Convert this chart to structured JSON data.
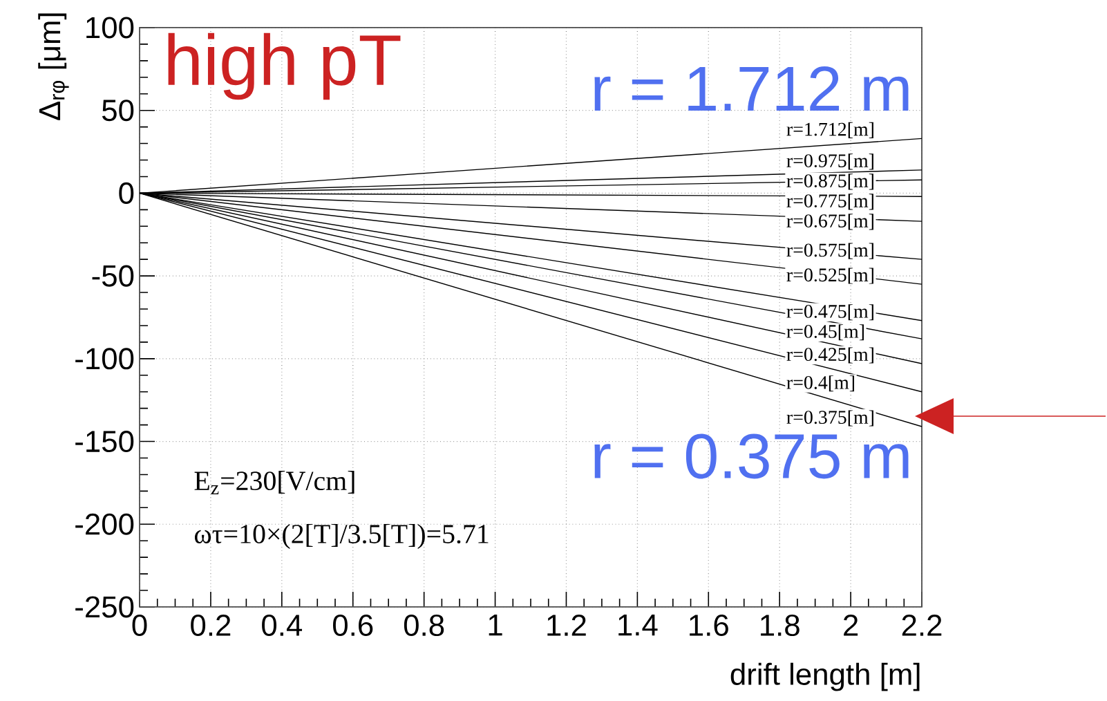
{
  "chart_data": {
    "type": "line",
    "x": [
      0,
      2.2
    ],
    "series": [
      {
        "name": "r=1.712[m]",
        "color": "#000000",
        "values": [
          0,
          33
        ]
      },
      {
        "name": "r=0.975[m]",
        "color": "#000000",
        "values": [
          0,
          14
        ]
      },
      {
        "name": "r=0.875[m]",
        "color": "#000000",
        "values": [
          0,
          8
        ]
      },
      {
        "name": "r=0.775[m]",
        "color": "#000000",
        "values": [
          0,
          -2
        ]
      },
      {
        "name": "r=0.675[m]",
        "color": "#000000",
        "values": [
          0,
          -17
        ]
      },
      {
        "name": "r=0.575[m]",
        "color": "#000000",
        "values": [
          0,
          -40
        ]
      },
      {
        "name": "r=0.525[m]",
        "color": "#000000",
        "values": [
          0,
          -55
        ]
      },
      {
        "name": "r=0.475[m]",
        "color": "#000000",
        "values": [
          0,
          -77
        ]
      },
      {
        "name": "r=0.45[m]",
        "color": "#000000",
        "values": [
          0,
          -88
        ]
      },
      {
        "name": "r=0.425[m]",
        "color": "#000000",
        "values": [
          0,
          -103
        ]
      },
      {
        "name": "r=0.4[m]",
        "color": "#000000",
        "values": [
          0,
          -120
        ]
      },
      {
        "name": "r=0.375[m]",
        "color": "#000000",
        "values": [
          0,
          -141
        ]
      }
    ],
    "xlim": [
      0,
      2.2
    ],
    "ylim": [
      -250,
      100
    ],
    "xticks": [
      0,
      0.2,
      0.4,
      0.6,
      0.8,
      1,
      1.2,
      1.4,
      1.6,
      1.8,
      2,
      2.2
    ],
    "yticks": [
      -250,
      -200,
      -150,
      -100,
      -50,
      0,
      50,
      100
    ],
    "xlabel": "drift length [m]",
    "ylabel": "Δ$_{rφ}$ [μm]",
    "grid": true,
    "annotations": [
      "high pT",
      "r = 1.712 m",
      "r = 0.375 m",
      "E$_{z}$=230[V/cm]",
      "ωτ=10×(2[T]/3.5[T])=5.71"
    ]
  }
}
